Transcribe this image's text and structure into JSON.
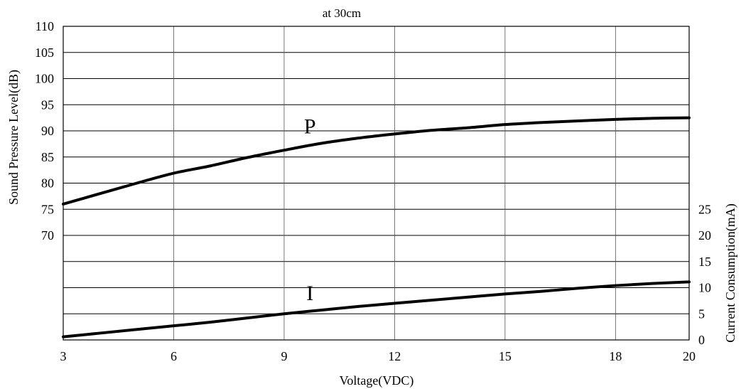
{
  "chart_data": {
    "type": "line",
    "title": "at 30cm",
    "xlabel": "Voltage(VDC)",
    "ylabel_left": "Sound Pressure Level(dB)",
    "ylabel_right": "Current Consumption(mA)",
    "xlim": [
      3,
      20
    ],
    "xticks": [
      3,
      6,
      9,
      12,
      15,
      18,
      20
    ],
    "ylim_left": [
      50,
      110
    ],
    "yticks_left": [
      70,
      75,
      80,
      85,
      90,
      95,
      100,
      105,
      110
    ],
    "ylim_right": [
      0,
      25
    ],
    "yticks_right": [
      0,
      5,
      10,
      15,
      20,
      25
    ],
    "grid": true,
    "series": [
      {
        "name": "P",
        "axis": "left",
        "x": [
          3,
          4,
          5,
          6,
          7,
          8,
          9,
          10,
          11,
          12,
          13,
          14,
          15,
          16,
          17,
          18,
          19,
          20
        ],
        "y": [
          76.0,
          78.0,
          80.0,
          81.9,
          83.3,
          84.9,
          86.3,
          87.6,
          88.6,
          89.4,
          90.1,
          90.6,
          91.2,
          91.6,
          91.9,
          92.2,
          92.4,
          92.5
        ]
      },
      {
        "name": "I",
        "axis": "right",
        "x": [
          3,
          4,
          5,
          6,
          7,
          8,
          9,
          10,
          11,
          12,
          13,
          14,
          15,
          16,
          17,
          18,
          19,
          20
        ],
        "y": [
          0.6,
          1.3,
          2.0,
          2.7,
          3.4,
          4.2,
          5.0,
          5.7,
          6.4,
          7.0,
          7.6,
          8.2,
          8.8,
          9.3,
          9.9,
          10.4,
          10.8,
          11.1
        ]
      }
    ]
  }
}
